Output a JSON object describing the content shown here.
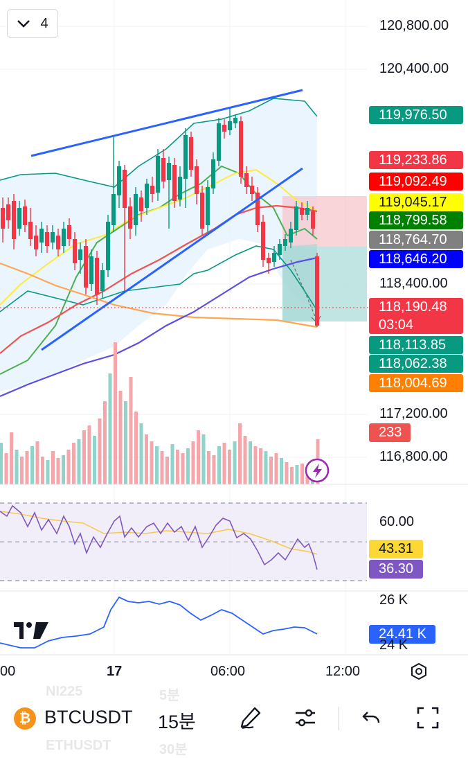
{
  "toolbar": {
    "collapse_count": "4"
  },
  "chart_data": {
    "type": "candlestick",
    "symbol": "BTCUSDT",
    "interval": "15분",
    "price_axis": {
      "ticks": [
        "120,800.00",
        "120,400.00",
        "118,400.00",
        "117,200.00",
        "116,800.00"
      ]
    },
    "price_labels": [
      {
        "value": "119,976.50",
        "color": "#089981"
      },
      {
        "value": "119,233.86",
        "color": "#f23645"
      },
      {
        "value": "119,092.49",
        "color": "#ff0000"
      },
      {
        "value": "119,045.17",
        "color": "#ffff00"
      },
      {
        "value": "118,799.58",
        "color": "#008000"
      },
      {
        "value": "118,764.70",
        "color": "#808080"
      },
      {
        "value": "118,646.20",
        "color": "#0000ff"
      },
      {
        "value": "118,190.48",
        "color": "#f23645",
        "countdown": "03:04"
      },
      {
        "value": "118,113.85",
        "color": "#089981"
      },
      {
        "value": "118,062.38",
        "color": "#089981"
      },
      {
        "value": "118,004.69",
        "color": "#ff7f00"
      }
    ],
    "volume_label": "233",
    "rsi": {
      "tick": "60.00",
      "ma_value": "43.31",
      "rsi_value": "36.30"
    },
    "indicator3": {
      "tick_top": "26 K",
      "tick_bottom": "24 K",
      "value": "24.41 K"
    },
    "time_axis": [
      "00",
      "17",
      "06:00",
      "12:00"
    ]
  },
  "bottom_bar": {
    "symbol": "BTCUSDT",
    "interval": "15분",
    "ghost_items": [
      "NI225",
      "5분",
      "ETHUSDT",
      "30분"
    ]
  },
  "logo": "TV",
  "colors": {
    "up": "#089981",
    "down": "#f23645",
    "line_blue": "#2962ff",
    "rsi_purple": "#7e57c2"
  }
}
